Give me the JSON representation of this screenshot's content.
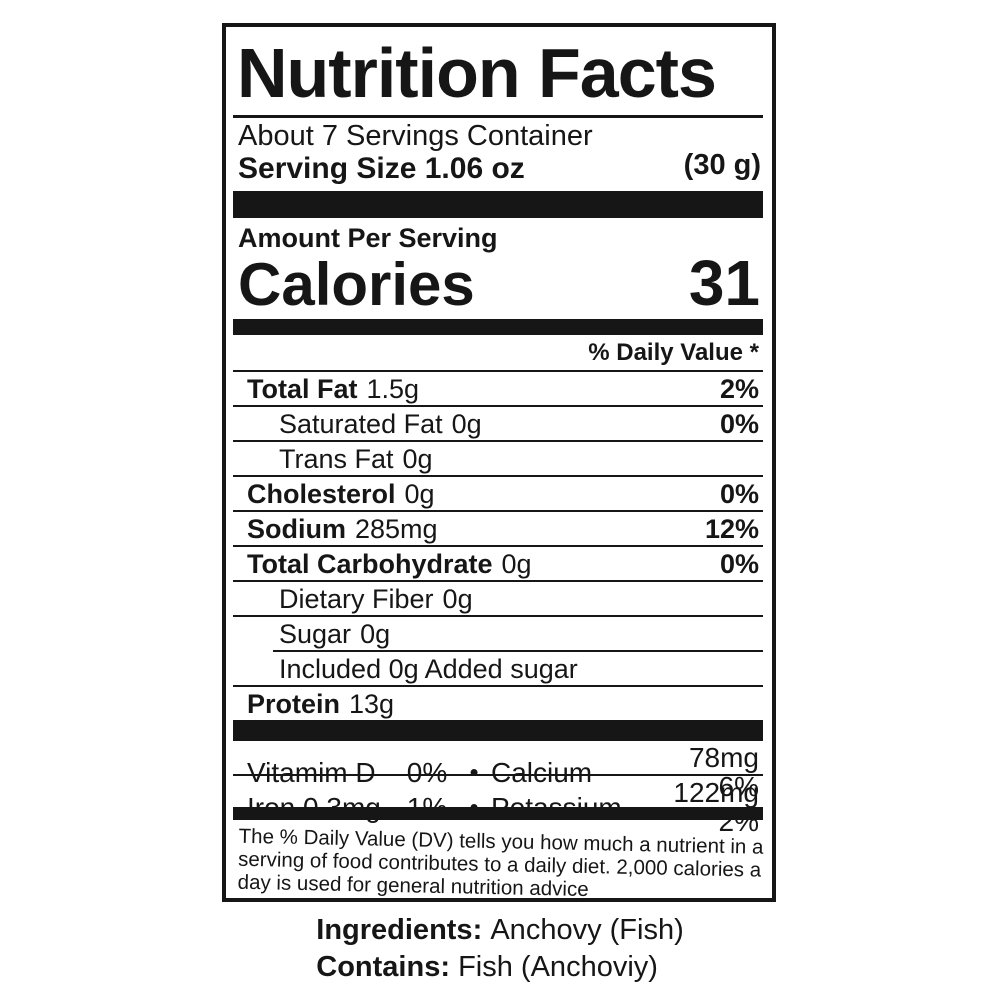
{
  "nutrition_label": {
    "title": "Nutrition Facts",
    "servings_line": "About 7 Servings Container",
    "serving_size": "Serving Size 1.06 oz",
    "serving_weight": "(30 g)",
    "amount_per_serving": "Amount Per Serving",
    "calories": {
      "label": "Calories",
      "value": "31"
    },
    "daily_value_header": "% Daily Value *",
    "nutrients": [
      {
        "name": "Total Fat",
        "amount": "1.5g",
        "dv": "2%",
        "bold": true,
        "indent": false,
        "rule_indent": false
      },
      {
        "name": "Saturated Fat",
        "amount": "0g",
        "dv": "0%",
        "bold": false,
        "indent": true,
        "rule_indent": false
      },
      {
        "name": "Trans Fat",
        "amount": "0g",
        "dv": "",
        "bold": false,
        "indent": true,
        "rule_indent": false
      },
      {
        "name": "Cholesterol",
        "amount": "0g",
        "dv": "0%",
        "bold": true,
        "indent": false,
        "rule_indent": false
      },
      {
        "name": "Sodium",
        "amount": "285mg",
        "dv": "12%",
        "bold": true,
        "indent": false,
        "rule_indent": false
      },
      {
        "name": "Total Carbohydrate",
        "amount": "0g",
        "dv": "0%",
        "bold": true,
        "indent": false,
        "rule_indent": false
      },
      {
        "name": "Dietary Fiber",
        "amount": "0g",
        "dv": "",
        "bold": false,
        "indent": true,
        "rule_indent": false
      },
      {
        "name": "Sugar",
        "amount": "0g",
        "dv": "",
        "bold": false,
        "indent": true,
        "rule_indent": false
      },
      {
        "name": "Included 0g Added sugar",
        "amount": "",
        "dv": "",
        "bold": false,
        "indent": true,
        "rule_indent": true
      },
      {
        "name": "Protein",
        "amount": "13g",
        "dv": "",
        "bold": true,
        "indent": false,
        "rule_indent": false
      }
    ],
    "micronutrients": [
      {
        "name": "Vitamim D",
        "percent": "0%",
        "separator": "•",
        "name2": "Calcium",
        "value2": "78mg 6%"
      },
      {
        "name": "Iron 0.3mg",
        "percent": "1%",
        "separator": "•",
        "name2": "Potassium",
        "value2": "122mg 2%"
      }
    ],
    "footnote_lines": [
      "The % Daily Value (DV) tells you how much a nutrient in a",
      "serving of food contributes to a daily diet. 2,000 calories a",
      "day is used for general nutrition advice"
    ]
  },
  "below_label": {
    "ingredients_label": "Ingredients:",
    "ingredients_value": "Anchovy (Fish)",
    "contains_label": "Contains:",
    "contains_value": "Fish (Anchoviy)"
  },
  "colors": {
    "text": "#161616",
    "bar": "#161616",
    "background": "#ffffff"
  }
}
